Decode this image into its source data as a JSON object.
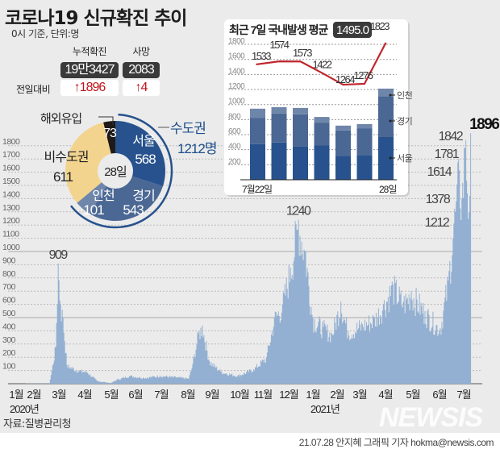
{
  "header": {
    "title": "코로나19 신규확진 추이",
    "subtitle": "0시 기준, 단위:명"
  },
  "stats": {
    "cumulative_label": "누적확진",
    "cumulative_value": "19만3427",
    "deaths_label": "사망",
    "deaths_value": "2083",
    "change_label": "전일대비",
    "cumulative_change": "↑1896",
    "deaths_change": "↑4"
  },
  "colors": {
    "area": "#93b0d2",
    "seoul": "#27528d",
    "gyeonggi": "#4b6894",
    "incheon": "#6f86ab",
    "non_capital": "#f2d48e",
    "overseas": "#1f1a17",
    "line": "#c0262c",
    "capital_text": "#1e4f8c",
    "up_arrow": "#c0141c"
  },
  "donut": {
    "center_label": "28일",
    "slices": [
      {
        "label": "서울",
        "value": 568,
        "color": "#27528d"
      },
      {
        "label": "경기",
        "value": 543,
        "color": "#4b6894"
      },
      {
        "label": "인천",
        "value": 101,
        "color": "#6f86ab"
      },
      {
        "label": "비수도권",
        "value": 611,
        "color": "#f2d48e"
      },
      {
        "label": "해외유입",
        "value": 73,
        "color": "#1f1a17"
      }
    ],
    "capital_label": "수도권",
    "capital_value": "1212명"
  },
  "chart_data": [
    {
      "type": "area",
      "title": "",
      "ylim": [
        0,
        1800
      ],
      "yticks": [
        100,
        200,
        300,
        400,
        500,
        600,
        700,
        800,
        900,
        1000,
        1100,
        1200,
        1300,
        1400,
        1500,
        1600,
        1700,
        1800
      ],
      "grid": true,
      "month_labels": [
        "1월",
        "2월",
        "3월",
        "4월",
        "5월",
        "6월",
        "7월",
        "8월",
        "9월",
        "10월",
        "11월",
        "12월",
        "1월",
        "2월",
        "3월",
        "4월",
        "5월",
        "6월",
        "7월"
      ],
      "year_labels": [
        "2020년",
        "2021년"
      ],
      "points": [
        [
          "2020-01-20",
          1
        ],
        [
          "2020-02-18",
          2
        ],
        [
          "2020-02-21",
          100
        ],
        [
          "2020-02-26",
          280
        ],
        [
          "2020-02-29",
          909
        ],
        [
          "2020-03-03",
          600
        ],
        [
          "2020-03-06",
          500
        ],
        [
          "2020-03-11",
          140
        ],
        [
          "2020-03-25",
          100
        ],
        [
          "2020-04-05",
          90
        ],
        [
          "2020-04-18",
          20
        ],
        [
          "2020-05-05",
          5
        ],
        [
          "2020-05-12",
          30
        ],
        [
          "2020-05-28",
          60
        ],
        [
          "2020-06-15",
          45
        ],
        [
          "2020-07-05",
          60
        ],
        [
          "2020-07-25",
          50
        ],
        [
          "2020-08-10",
          40
        ],
        [
          "2020-08-15",
          150
        ],
        [
          "2020-08-22",
          380
        ],
        [
          "2020-08-27",
          441
        ],
        [
          "2020-09-05",
          170
        ],
        [
          "2020-09-20",
          90
        ],
        [
          "2020-10-10",
          60
        ],
        [
          "2020-10-30",
          110
        ],
        [
          "2020-11-15",
          200
        ],
        [
          "2020-11-25",
          500
        ],
        [
          "2020-12-05",
          600
        ],
        [
          "2020-12-15",
          880
        ],
        [
          "2020-12-25",
          1240
        ],
        [
          "2021-01-03",
          1000
        ],
        [
          "2021-01-12",
          500
        ],
        [
          "2021-01-25",
          430
        ],
        [
          "2021-02-05",
          380
        ],
        [
          "2021-02-16",
          620
        ],
        [
          "2021-02-25",
          400
        ],
        [
          "2021-03-15",
          450
        ],
        [
          "2021-03-30",
          500
        ],
        [
          "2021-04-10",
          600
        ],
        [
          "2021-04-22",
          750
        ],
        [
          "2021-05-05",
          620
        ],
        [
          "2021-05-15",
          700
        ],
        [
          "2021-06-01",
          550
        ],
        [
          "2021-06-20",
          420
        ],
        [
          "2021-06-30",
          780
        ],
        [
          "2021-07-07",
          1212
        ],
        [
          "2021-07-10",
          1378
        ],
        [
          "2021-07-14",
          1614
        ],
        [
          "2021-07-17",
          1400
        ],
        [
          "2021-07-21",
          1781
        ],
        [
          "2021-07-22",
          1842
        ],
        [
          "2021-07-26",
          1300
        ],
        [
          "2021-07-28",
          1896
        ]
      ],
      "annotations": [
        {
          "date": "2020-02-29",
          "value": 909,
          "label": "909"
        },
        {
          "date": "2020-12-25",
          "value": 1240,
          "label": "1240"
        },
        {
          "date": "2021-07-07",
          "value": 1212,
          "label": "1212"
        },
        {
          "date": "2021-07-10",
          "value": 1378,
          "label": "1378"
        },
        {
          "date": "2021-07-14",
          "value": 1614,
          "label": "1614"
        },
        {
          "date": "2021-07-21",
          "value": 1781,
          "label": "1781"
        },
        {
          "date": "2021-07-22",
          "value": 1842,
          "label": "1842"
        },
        {
          "date": "2021-07-28",
          "value": 1896,
          "label": "1896"
        }
      ]
    },
    {
      "type": "bar+line",
      "title": "최근 7일 국내발생 평균",
      "average": "1495.0",
      "ylim": [
        0,
        1800
      ],
      "yticks": [
        200,
        400,
        600,
        800,
        1000,
        1200,
        1400,
        1600,
        1800
      ],
      "categories": [
        "7월22일",
        "23",
        "24",
        "25",
        "26",
        "27",
        "28일"
      ],
      "category_labels_shown": [
        "7월22일",
        "28일"
      ],
      "stack_series": [
        {
          "name": "서울",
          "values": [
            475,
            495,
            440,
            460,
            320,
            330,
            568
          ]
        },
        {
          "name": "경기",
          "values": [
            345,
            385,
            430,
            300,
            335,
            355,
            543
          ]
        },
        {
          "name": "인천",
          "values": [
            125,
            85,
            85,
            75,
            65,
            55,
            101
          ]
        }
      ],
      "line_values": [
        1533,
        1574,
        1573,
        1422,
        1264,
        1276,
        1823
      ]
    }
  ],
  "footer": {
    "source": "자료:질병관리청",
    "byline": "21.07.28 안지혜 그래픽 기자 hokma@newsis.com",
    "logo": "NEWSIS"
  }
}
